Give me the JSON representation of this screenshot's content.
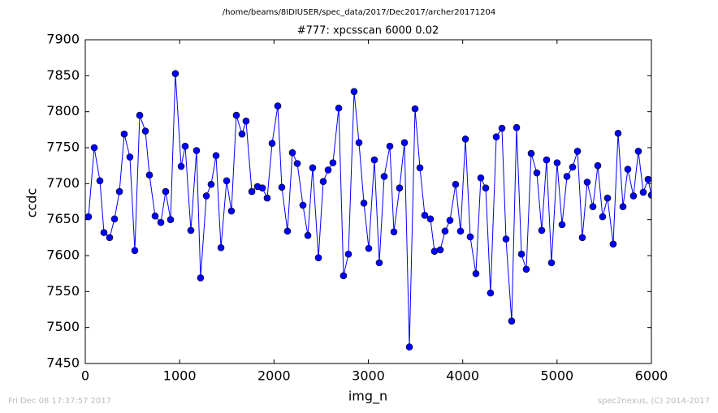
{
  "chart_data": {
    "type": "line",
    "suptitle": "/home/beams/8IDIUSER/spec_data/2017/Dec2017/archer20171204",
    "title": "#777: xpcsscan 6000 0.02",
    "xlabel": "img_n",
    "ylabel": "ccdc",
    "footer_left": "Fri Dec 08 17:37:57 2017",
    "footer_right": "spec2nexus, (C) 2014-2017",
    "x": [
      34,
      95,
      155,
      198,
      258,
      310,
      362,
      413,
      473,
      525,
      577,
      637,
      680,
      740,
      801,
      852,
      904,
      955,
      1016,
      1059,
      1119,
      1179,
      1222,
      1283,
      1334,
      1386,
      1438,
      1498,
      1549,
      1601,
      1661,
      1704,
      1765,
      1825,
      1877,
      1928,
      1980,
      2040,
      2083,
      2143,
      2195,
      2247,
      2307,
      2359,
      2410,
      2471,
      2522,
      2574,
      2625,
      2686,
      2737,
      2789,
      2849,
      2901,
      2953,
      3004,
      3064,
      3116,
      3168,
      3228,
      3271,
      3331,
      3383,
      3435,
      3495,
      3547,
      3598,
      3658,
      3701,
      3762,
      3813,
      3865,
      3925,
      3977,
      4029,
      4080,
      4140,
      4192,
      4244,
      4295,
      4356,
      4416,
      4459,
      4519,
      4571,
      4623,
      4674,
      4726,
      4786,
      4838,
      4889,
      4941,
      5001,
      5053,
      5105,
      5165,
      5217,
      5268,
      5320,
      5380,
      5432,
      5483,
      5535,
      5595,
      5647,
      5699,
      5750,
      5810,
      5862,
      5914,
      5965,
      6000
    ],
    "series": [
      {
        "name": "ccdc",
        "color": "#0000ff",
        "values": [
          7654,
          7750,
          7704,
          7632,
          7625,
          7651,
          7689,
          7769,
          7737,
          7607,
          7795,
          7773,
          7712,
          7655,
          7646,
          7689,
          7650,
          7853,
          7724,
          7752,
          7635,
          7746,
          7569,
          7683,
          7699,
          7739,
          7611,
          7704,
          7662,
          7795,
          7769,
          7787,
          7689,
          7696,
          7694,
          7680,
          7756,
          7808,
          7695,
          7634,
          7743,
          7728,
          7670,
          7628,
          7722,
          7597,
          7703,
          7719,
          7729,
          7805,
          7572,
          7602,
          7828,
          7757,
          7673,
          7610,
          7733,
          7590,
          7710,
          7752,
          7633,
          7694,
          7757,
          7473,
          7804,
          7722,
          7656,
          7651,
          7606,
          7608,
          7634,
          7649,
          7699,
          7634,
          7762,
          7626,
          7575,
          7708,
          7694,
          7548,
          7765,
          7777,
          7623,
          7509,
          7778,
          7602,
          7581,
          7742,
          7715,
          7635,
          7733,
          7590,
          7729,
          7643,
          7710,
          7723,
          7745,
          7625,
          7702,
          7668,
          7725,
          7654,
          7680,
          7616,
          7770,
          7668,
          7720,
          7683,
          7745,
          7688,
          7706,
          7684
        ]
      }
    ],
    "xlim": [
      0,
      6000
    ],
    "xticks": [
      0,
      1000,
      2000,
      3000,
      4000,
      5000,
      6000
    ],
    "ylim": [
      7450,
      7900
    ],
    "yticks": [
      7450,
      7500,
      7550,
      7600,
      7650,
      7700,
      7750,
      7800,
      7850,
      7900
    ]
  }
}
